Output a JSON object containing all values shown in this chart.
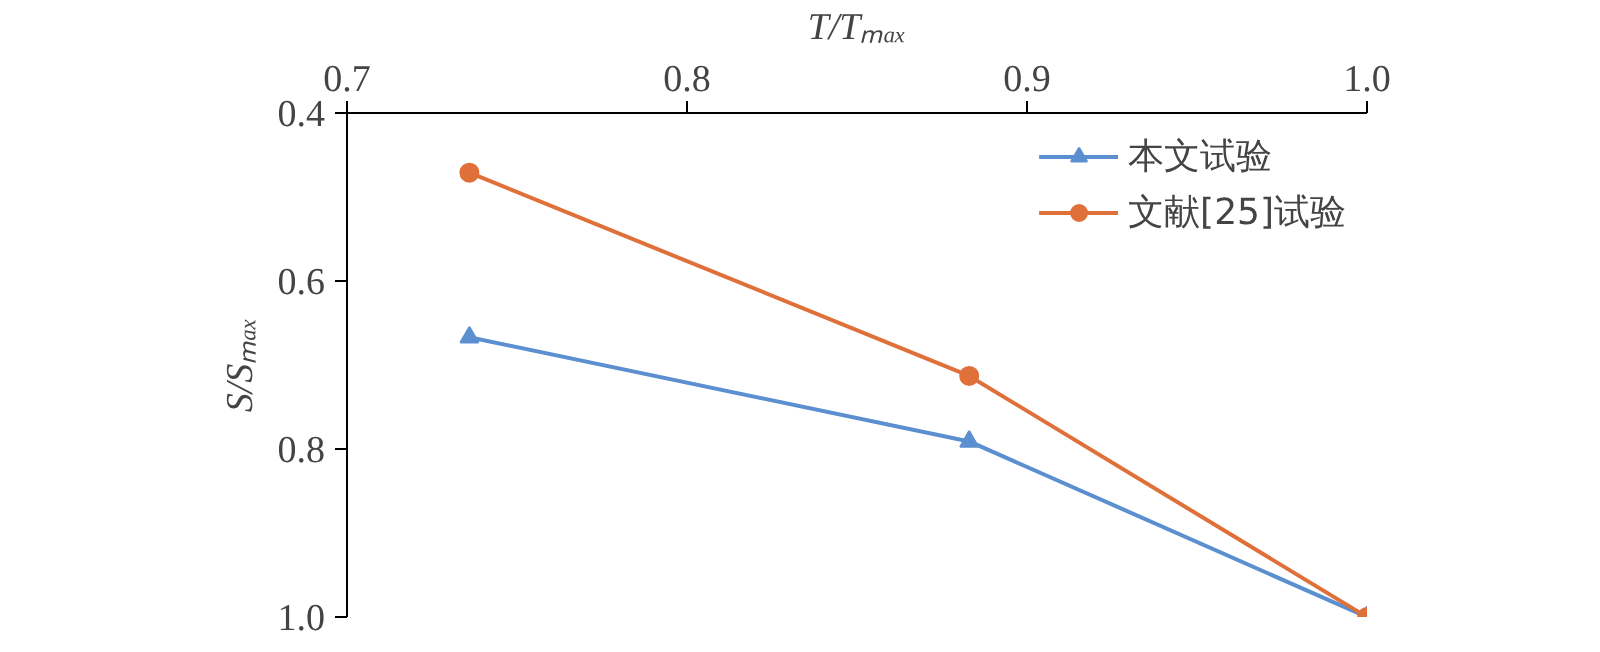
{
  "chart_data": {
    "type": "line",
    "xlabel": "T/Tₘₐₓ",
    "ylabel": "S/Sₘₐₓ",
    "xlim": [
      0.7,
      1.0
    ],
    "xticks": [
      {
        "value": 0.7,
        "label": "0.7"
      },
      {
        "value": 0.8,
        "label": "0.8"
      },
      {
        "value": 0.9,
        "label": "0.9"
      },
      {
        "value": 1.0,
        "label": "1.0"
      }
    ],
    "ylim": [
      1.0,
      0.4
    ],
    "yticks": [
      {
        "value": 0.4,
        "label": "0.4"
      },
      {
        "value": 0.6,
        "label": "0.6"
      },
      {
        "value": 0.8,
        "label": "0.8"
      },
      {
        "value": 1.0,
        "label": "1.0"
      }
    ],
    "x": [
      0.736,
      0.883,
      1.0
    ],
    "series": [
      {
        "name": "本文试验",
        "color": "#5b8fd0",
        "values": [
          0.667,
          0.791,
          1.0
        ],
        "marker": "triangle"
      },
      {
        "name": "文献[25]试验",
        "color": "#e0703a",
        "values": [
          0.471,
          0.713,
          1.0
        ],
        "marker": "circle"
      }
    ],
    "legend": "top right",
    "grid": false,
    "line_style": "solid"
  }
}
